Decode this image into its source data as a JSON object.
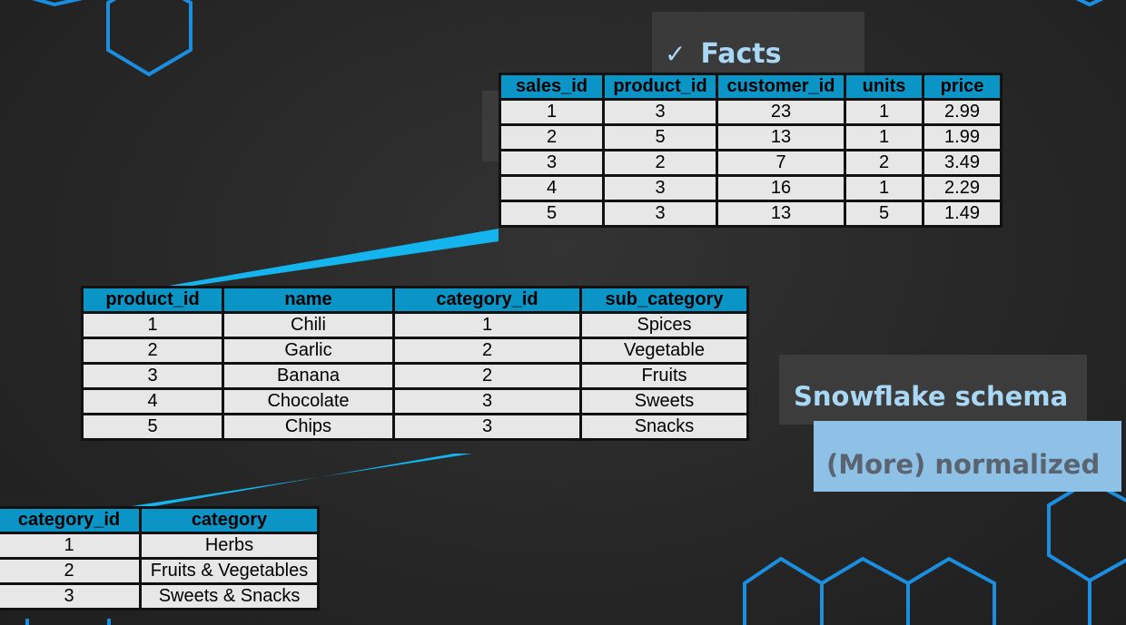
{
  "facts": {
    "label": "Facts",
    "check_icon": "check-icon",
    "columns": [
      "sales_id",
      "product_id",
      "customer_id",
      "units",
      "price"
    ],
    "rows": [
      [
        "1",
        "3",
        "23",
        "1",
        "2.99"
      ],
      [
        "2",
        "5",
        "13",
        "1",
        "1.99"
      ],
      [
        "3",
        "2",
        "7",
        "2",
        "3.49"
      ],
      [
        "4",
        "3",
        "16",
        "1",
        "2.29"
      ],
      [
        "5",
        "3",
        "13",
        "5",
        "1.49"
      ]
    ]
  },
  "product": {
    "columns": [
      "product_id",
      "name",
      "category_id",
      "sub_category"
    ],
    "rows": [
      [
        "1",
        "Chili",
        "1",
        "Spices"
      ],
      [
        "2",
        "Garlic",
        "2",
        "Vegetable"
      ],
      [
        "3",
        "Banana",
        "2",
        "Fruits"
      ],
      [
        "4",
        "Chocolate",
        "3",
        "Sweets"
      ],
      [
        "5",
        "Chips",
        "3",
        "Snacks"
      ]
    ]
  },
  "category": {
    "columns": [
      "category_id",
      "category"
    ],
    "rows": [
      [
        "1",
        "Herbs"
      ],
      [
        "2",
        "Fruits & Vegetables"
      ],
      [
        "3",
        "Sweets & Snacks"
      ]
    ]
  },
  "schema_title": "Snowflake schema",
  "schema_subtitle": "(More) normalized",
  "colors": {
    "header": "#0b95c6",
    "cell": "#e7e7e7",
    "connector": "#14b4ee",
    "title": "#a8d8f5",
    "hexagon": "#1a8fd8",
    "normalized_panel": "#8ec1e5"
  }
}
